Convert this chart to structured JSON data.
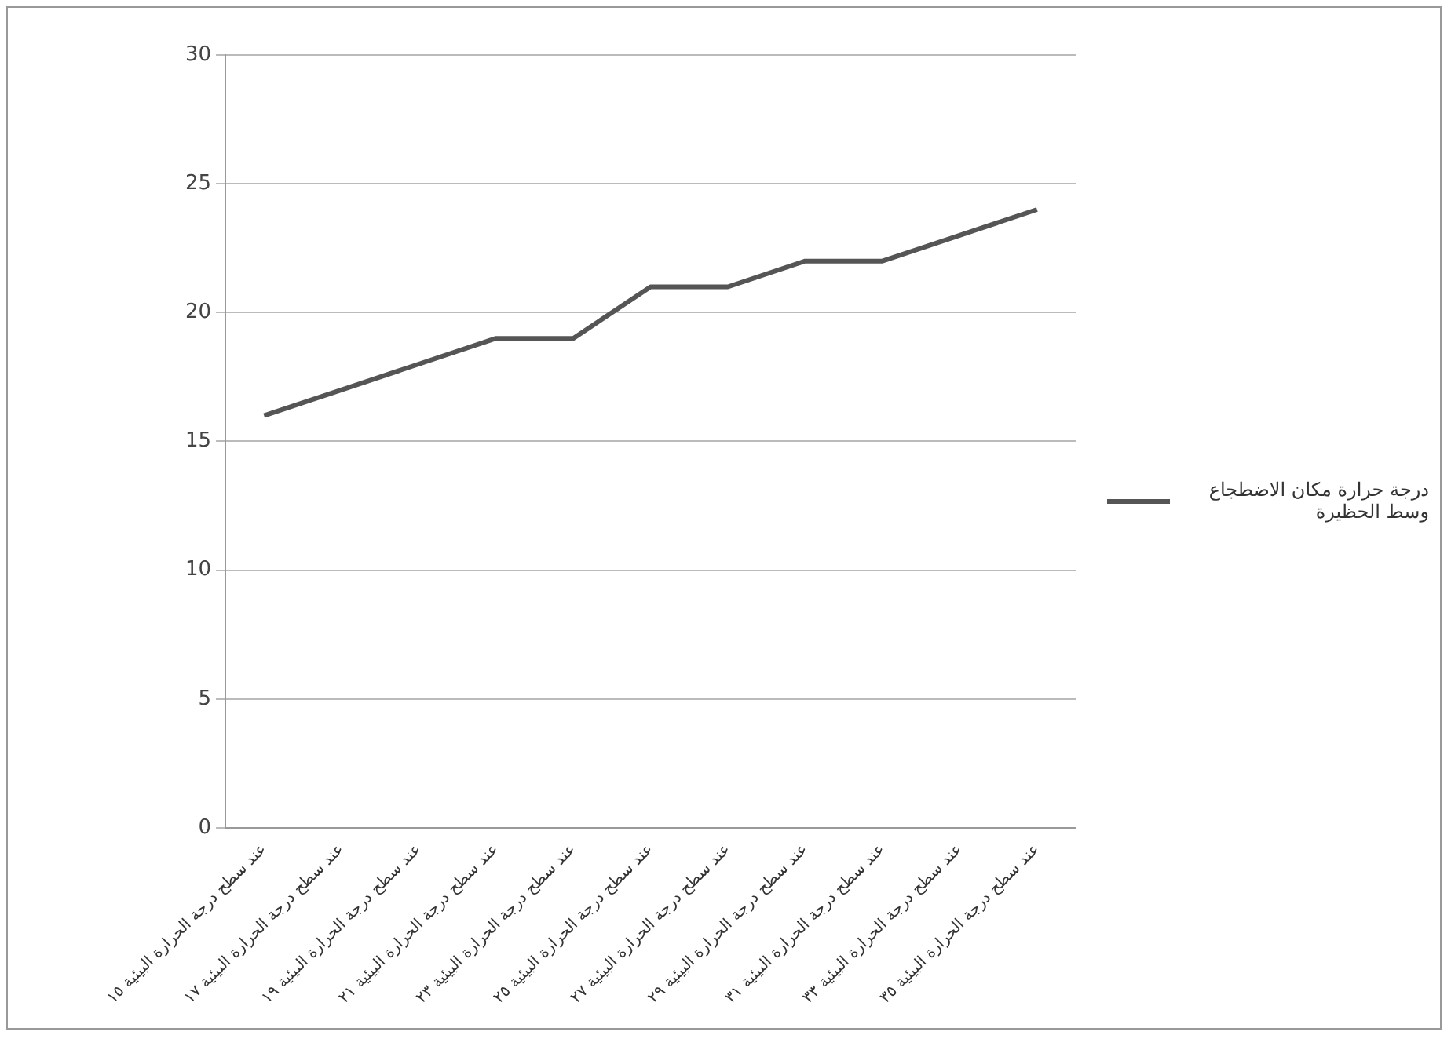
{
  "chart_data": {
    "type": "line",
    "categories": [
      "عند سطح درجة الحرارة البيئية ١٥",
      "عند سطح درجة الحرارة البيئية ١٧",
      "عند سطح درجة الحرارة البيئية ١٩",
      "عند سطح درجة الحرارة البيئية ٢١",
      "عند سطح درجة الحرارة البيئية ٢٣",
      "عند سطح درجة الحرارة البيئية ٢٥",
      "عند سطح درجة الحرارة البيئية ٢٧",
      "عند سطح درجة الحرارة البيئية ٢٩",
      "عند سطح درجة الحرارة البيئية ٣١",
      "عند سطح درجة الحرارة البيئية ٣٣",
      "عند سطح درجة الحرارة البيئية ٣٥"
    ],
    "series": [
      {
        "name": "درجة حرارة مكان الاضطجاع وسط الحظيرة",
        "color": "#555555",
        "values": [
          16,
          17,
          18,
          19,
          19,
          21,
          21,
          22,
          22,
          23,
          24
        ]
      }
    ],
    "ylim": [
      0,
      30
    ],
    "yticks": [
      0,
      5,
      10,
      15,
      20,
      25,
      30
    ],
    "grid": "y",
    "legend": "right",
    "marker": "none",
    "line_style": "solid"
  }
}
